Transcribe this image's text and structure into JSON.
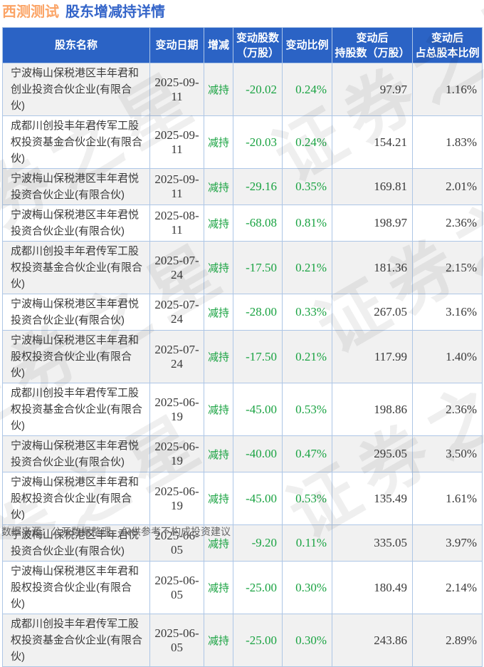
{
  "header": {
    "stock": "西测测试",
    "title": "股东增减持详情"
  },
  "footer": {
    "note": "数据来源：公开数据整理，仅供参考不构成投资建议"
  },
  "watermark": {
    "text": "证券之星"
  },
  "colors": {
    "header_bg": "#2b63c5",
    "title_stock": "#fba466",
    "title_text": "#3465c9",
    "green": "#1aa342",
    "border": "#adc6e6",
    "row_alt": "#f1f1f1",
    "text": "#3a3a3a",
    "footer_text": "#666666"
  },
  "chart_data": {
    "type": "table",
    "title": "西测测试 股东增减持详情",
    "columns": [
      {
        "label": "股东名称"
      },
      {
        "label": "变动日期"
      },
      {
        "label": "增减"
      },
      {
        "label": "变动股数\n（万股）"
      },
      {
        "label": "变动比例"
      },
      {
        "label": "变动后\n持股数（万股）"
      },
      {
        "label": "变动后\n占总股本比例"
      }
    ],
    "rows": [
      {
        "name": "宁波梅山保税港区丰年君和创业投资合伙企业(有限合伙)",
        "date": "2025-09-11",
        "action": "减持",
        "change_shares": "-20.02",
        "change_ratio": "0.24%",
        "shares_after": "97.97",
        "ratio_after": "1.16%"
      },
      {
        "name": "成都川创投丰年君传军工股权投资基金合伙企业(有限合伙)",
        "date": "2025-09-11",
        "action": "减持",
        "change_shares": "-20.03",
        "change_ratio": "0.24%",
        "shares_after": "154.21",
        "ratio_after": "1.83%"
      },
      {
        "name": "宁波梅山保税港区丰年君悦投资合伙企业(有限合伙)",
        "date": "2025-09-11",
        "action": "减持",
        "change_shares": "-29.16",
        "change_ratio": "0.35%",
        "shares_after": "169.81",
        "ratio_after": "2.01%"
      },
      {
        "name": "宁波梅山保税港区丰年君悦投资合伙企业(有限合伙)",
        "date": "2025-08-11",
        "action": "减持",
        "change_shares": "-68.08",
        "change_ratio": "0.81%",
        "shares_after": "198.97",
        "ratio_after": "2.36%"
      },
      {
        "name": "成都川创投丰年君传军工股权投资基金合伙企业(有限合伙)",
        "date": "2025-07-24",
        "action": "减持",
        "change_shares": "-17.50",
        "change_ratio": "0.21%",
        "shares_after": "181.36",
        "ratio_after": "2.15%"
      },
      {
        "name": "宁波梅山保税港区丰年君悦投资合伙企业(有限合伙)",
        "date": "2025-07-24",
        "action": "减持",
        "change_shares": "-28.00",
        "change_ratio": "0.33%",
        "shares_after": "267.05",
        "ratio_after": "3.16%"
      },
      {
        "name": "宁波梅山保税港区丰年君和股权投资合伙企业(有限合伙)",
        "date": "2025-07-24",
        "action": "减持",
        "change_shares": "-17.50",
        "change_ratio": "0.21%",
        "shares_after": "117.99",
        "ratio_after": "1.40%"
      },
      {
        "name": "成都川创投丰年君传军工股权投资基金合伙企业(有限合伙)",
        "date": "2025-06-19",
        "action": "减持",
        "change_shares": "-45.00",
        "change_ratio": "0.53%",
        "shares_after": "198.86",
        "ratio_after": "2.36%"
      },
      {
        "name": "宁波梅山保税港区丰年君悦投资合伙企业(有限合伙)",
        "date": "2025-06-19",
        "action": "减持",
        "change_shares": "-40.00",
        "change_ratio": "0.47%",
        "shares_after": "295.05",
        "ratio_after": "3.50%"
      },
      {
        "name": "宁波梅山保税港区丰年君和股权投资合伙企业(有限合伙)",
        "date": "2025-06-19",
        "action": "减持",
        "change_shares": "-45.00",
        "change_ratio": "0.53%",
        "shares_after": "135.49",
        "ratio_after": "1.61%"
      },
      {
        "name": "宁波梅山保税港区丰年君悦投资合伙企业(有限合伙)",
        "date": "2025-06-05",
        "action": "减持",
        "change_shares": "-9.20",
        "change_ratio": "0.11%",
        "shares_after": "335.05",
        "ratio_after": "3.97%"
      },
      {
        "name": "宁波梅山保税港区丰年君和股权投资合伙企业(有限合伙)",
        "date": "2025-06-05",
        "action": "减持",
        "change_shares": "-25.00",
        "change_ratio": "0.30%",
        "shares_after": "180.49",
        "ratio_after": "2.14%"
      },
      {
        "name": "成都川创投丰年君传军工股权投资基金合伙企业(有限合伙)",
        "date": "2025-06-05",
        "action": "减持",
        "change_shares": "-25.00",
        "change_ratio": "0.30%",
        "shares_after": "243.86",
        "ratio_after": "2.89%"
      }
    ]
  }
}
